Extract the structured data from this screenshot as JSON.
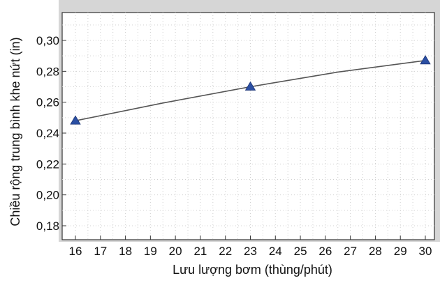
{
  "chart_data": {
    "type": "line",
    "title": "",
    "xlabel": "Lưu lượng bơm (thùng/phút)",
    "ylabel": "Chiều rộng trung bình khe nứt (in)",
    "xlim": [
      16,
      30
    ],
    "ylim": [
      0.17,
      0.31
    ],
    "x_ticks": [
      16,
      17,
      18,
      19,
      20,
      21,
      22,
      23,
      24,
      25,
      26,
      27,
      28,
      29,
      30
    ],
    "y_ticks": [
      0.18,
      0.2,
      0.22,
      0.24,
      0.26,
      0.28,
      0.3
    ],
    "y_tick_labels": [
      "0,18",
      "0,20",
      "0,22",
      "0,24",
      "0,26",
      "0,28",
      "0,30"
    ],
    "grid": true,
    "series": [
      {
        "marker": "triangle",
        "color": "#2b4fa3",
        "line_color": "#555555",
        "points": [
          {
            "x": 16,
            "y": 0.248
          },
          {
            "x": 23,
            "y": 0.27
          },
          {
            "x": 30,
            "y": 0.287
          }
        ],
        "curve": [
          {
            "x": 16,
            "y": 0.248
          },
          {
            "x": 19.5,
            "y": 0.2595
          },
          {
            "x": 23,
            "y": 0.27
          },
          {
            "x": 26.5,
            "y": 0.2795
          },
          {
            "x": 30,
            "y": 0.287
          }
        ]
      }
    ]
  }
}
